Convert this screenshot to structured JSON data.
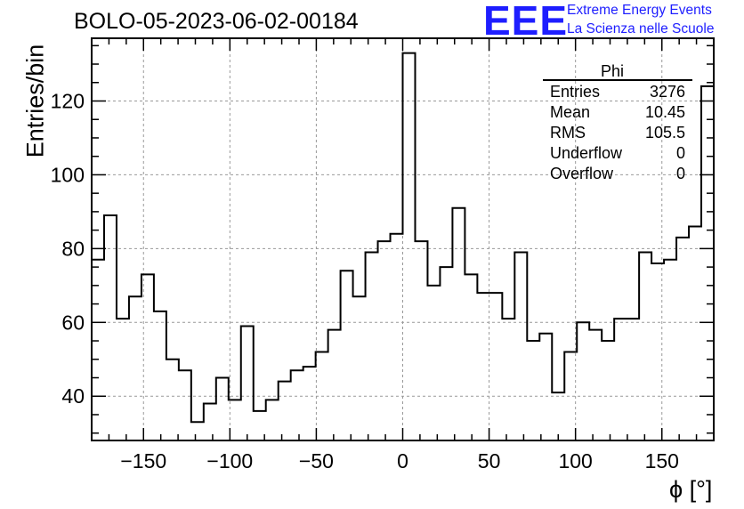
{
  "title": "BOLO-05-2023-06-02-00184",
  "logo": {
    "mark": "EEE",
    "line1": "Extreme Energy Events",
    "line2": "La Scienza nelle Scuole",
    "color": "#1e1eff"
  },
  "stats": {
    "name": "Phi",
    "rows": [
      {
        "label": "Entries",
        "value": "3276"
      },
      {
        "label": "Mean",
        "value": "10.45"
      },
      {
        "label": "RMS",
        "value": "105.5"
      },
      {
        "label": "Underflow",
        "value": "0"
      },
      {
        "label": "Overflow",
        "value": "0"
      }
    ]
  },
  "chart_data": {
    "type": "bar",
    "histogram": true,
    "title": "BOLO-05-2023-06-02-00184",
    "xlabel": "ϕ [°]",
    "ylabel": "Entries/bin",
    "xlim": [
      -180,
      180
    ],
    "ylim": [
      28,
      137
    ],
    "grid": true,
    "bin_width": 7.2,
    "xticks": [
      -150,
      -100,
      -50,
      0,
      50,
      100,
      150
    ],
    "yticks": [
      40,
      60,
      80,
      100,
      120
    ],
    "values": [
      77,
      89,
      61,
      67,
      73,
      63,
      50,
      47,
      33,
      38,
      45,
      39,
      59,
      36,
      39,
      44,
      47,
      48,
      52,
      58,
      74,
      67,
      79,
      82,
      84,
      133,
      82,
      70,
      75,
      91,
      73,
      68,
      68,
      61,
      79,
      55,
      57,
      41,
      52,
      60,
      58,
      55,
      61,
      61,
      79,
      76,
      77,
      83,
      86,
      124
    ]
  }
}
